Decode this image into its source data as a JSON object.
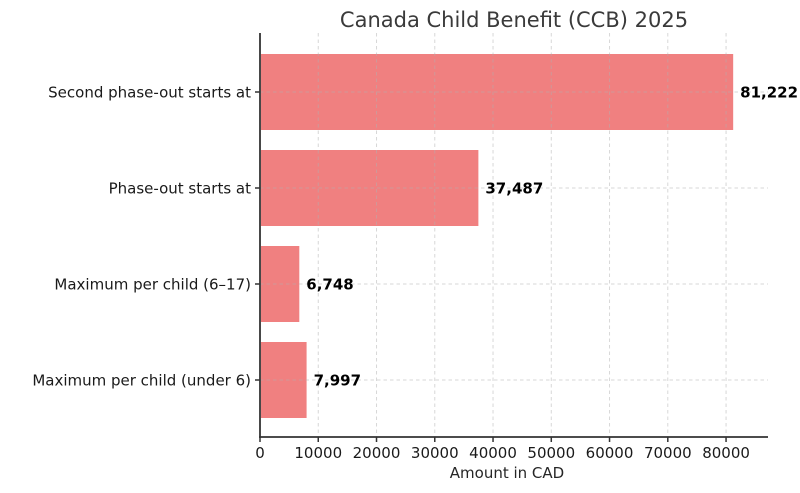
{
  "chart_data": {
    "type": "bar",
    "orientation": "horizontal",
    "title": "Canada Child Benefit (CCB) 2025",
    "xlabel": "Amount in CAD",
    "ylabel": "",
    "categories": [
      "Second phase-out starts at",
      "Phase-out starts at",
      "Maximum per child (6–17)",
      "Maximum per child (under 6)"
    ],
    "values": [
      81222,
      37487,
      6748,
      7997
    ],
    "value_labels": [
      "81,222",
      "37,487",
      "6,748",
      "7,997"
    ],
    "xticks": [
      0,
      10000,
      20000,
      30000,
      40000,
      50000,
      60000,
      70000,
      80000
    ],
    "xlim": [
      0,
      87200
    ],
    "grid": true,
    "legend": "none",
    "bar_color": "#f08080"
  },
  "colors": {
    "background": "#ffffff",
    "bar": "#f08080",
    "grid": "#b0b0b0",
    "axis": "#333333",
    "tick_text": "#1a1a1a",
    "title_text": "#3a3a3a",
    "value_text": "#000000"
  }
}
